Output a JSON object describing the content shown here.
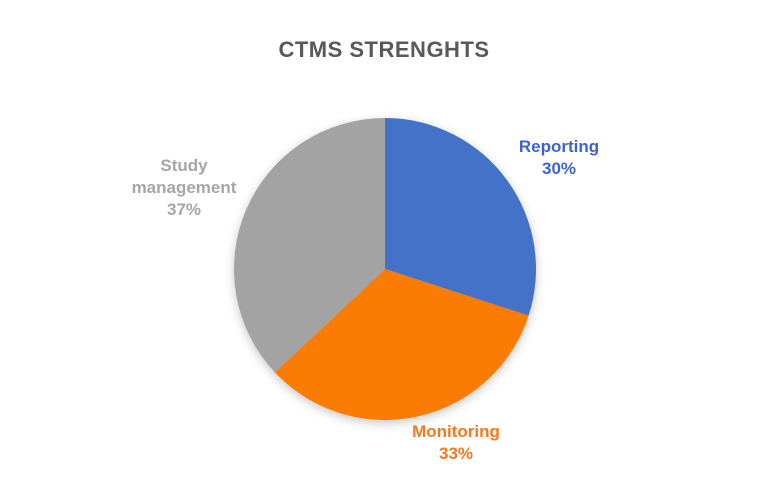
{
  "page": {
    "background_color": "#ffffff"
  },
  "chart_data": {
    "type": "pie",
    "title": "CTMS STRENGHTS",
    "title_color": "#595959",
    "start_angle_deg": 0,
    "direction": "clockwise",
    "legend": "none",
    "labels_position": "outside",
    "categories": [
      "Reporting",
      "Monitoring",
      "Study management"
    ],
    "values": [
      30,
      33,
      37
    ],
    "slices": [
      {
        "label": "Reporting",
        "value": 30,
        "display": "30%",
        "color": "#4472C8",
        "label_color": "#3E63CE"
      },
      {
        "label": "Monitoring",
        "value": 33,
        "display": "33%",
        "color": "#FB7C02",
        "label_color": "#F5781E"
      },
      {
        "label": "Study management",
        "value": 37,
        "display": "37%",
        "color": "#A3A3A3",
        "label_color": "#A6A6A6"
      }
    ]
  }
}
